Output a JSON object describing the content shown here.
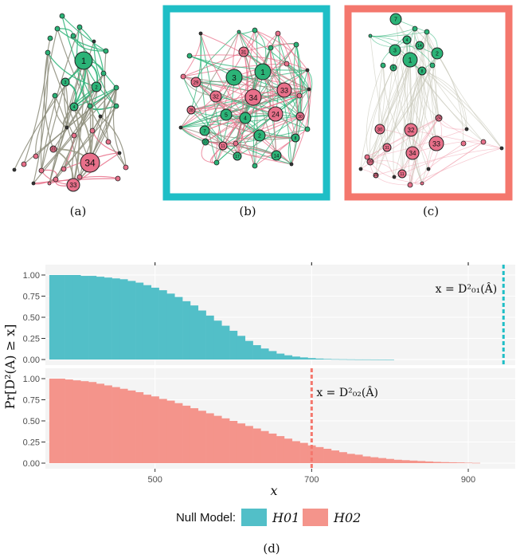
{
  "captions": {
    "a": "(a)",
    "b": "(b)",
    "c": "(c)",
    "d": "(d)"
  },
  "colors": {
    "green": "#2bb377",
    "pink": "#e8708a",
    "teal": "#1fbec6",
    "salmon": "#f4776d",
    "teal_bar": "#52bfc8",
    "salmon_bar": "#f4948b",
    "edge_grey": "#8c8c7a"
  },
  "networks": {
    "a": {
      "node_labels": [
        "1",
        "2",
        "3",
        "4",
        "34",
        "33",
        "31"
      ]
    },
    "b": {
      "node_labels": [
        "1",
        "2",
        "3",
        "4",
        "5",
        "7",
        "14",
        "24",
        "32",
        "33",
        "34",
        "31",
        "30",
        "29",
        "28",
        "8",
        "11",
        "17",
        "22"
      ]
    },
    "c": {
      "node_labels": [
        "1",
        "2",
        "3",
        "4",
        "7",
        "8",
        "14",
        "34",
        "33",
        "32",
        "30",
        "31",
        "29",
        "24",
        "28",
        "11",
        "5"
      ]
    }
  },
  "chart_data": {
    "type": "bar",
    "xlabel": "x",
    "ylabel": "Pr[D²(A) ≥ x]",
    "xlim": [
      360,
      960
    ],
    "x_ticks": [
      "500",
      "700",
      "900"
    ],
    "ylim": [
      0,
      1.0
    ],
    "y_ticks": [
      "0.00",
      "0.25",
      "0.50",
      "0.75",
      "1.00"
    ],
    "grid": true,
    "legend": {
      "title": "Null Model:",
      "position": "bottom",
      "entries": [
        "H01",
        "H02"
      ]
    },
    "series": [
      {
        "name": "H01",
        "x": [
          370,
          380,
          390,
          400,
          410,
          420,
          430,
          440,
          450,
          460,
          470,
          480,
          490,
          500,
          510,
          520,
          530,
          540,
          550,
          560,
          570,
          580,
          590,
          600,
          610,
          620,
          630,
          640,
          650,
          660,
          670,
          680,
          690,
          700,
          710,
          720,
          730,
          740,
          750,
          760,
          770,
          780,
          790,
          800
        ],
        "y": [
          1.0,
          1.0,
          1.0,
          1.0,
          0.99,
          0.99,
          0.98,
          0.97,
          0.96,
          0.95,
          0.93,
          0.91,
          0.88,
          0.85,
          0.82,
          0.78,
          0.74,
          0.69,
          0.64,
          0.58,
          0.52,
          0.46,
          0.4,
          0.34,
          0.28,
          0.22,
          0.17,
          0.13,
          0.1,
          0.07,
          0.05,
          0.035,
          0.025,
          0.017,
          0.011,
          0.007,
          0.004,
          0.003,
          0.002,
          0.001,
          0.001,
          0.0005,
          0.0003,
          0.0001
        ],
        "observed": {
          "x": 945,
          "label": "x = D²₀₁(Â)"
        }
      },
      {
        "name": "H02",
        "x": [
          370,
          380,
          390,
          400,
          410,
          420,
          430,
          440,
          450,
          460,
          470,
          480,
          490,
          500,
          510,
          520,
          530,
          540,
          550,
          560,
          570,
          580,
          590,
          600,
          610,
          620,
          630,
          640,
          650,
          660,
          670,
          680,
          690,
          700,
          710,
          720,
          730,
          740,
          750,
          760,
          770,
          780,
          790,
          800,
          810,
          820,
          830,
          840,
          850,
          860,
          870,
          880,
          890,
          900,
          910
        ],
        "y": [
          1.0,
          1.0,
          0.99,
          0.98,
          0.97,
          0.96,
          0.94,
          0.92,
          0.9,
          0.88,
          0.86,
          0.84,
          0.81,
          0.79,
          0.76,
          0.74,
          0.71,
          0.68,
          0.65,
          0.62,
          0.59,
          0.56,
          0.53,
          0.5,
          0.47,
          0.44,
          0.41,
          0.38,
          0.35,
          0.32,
          0.29,
          0.26,
          0.24,
          0.21,
          0.19,
          0.17,
          0.15,
          0.13,
          0.11,
          0.1,
          0.08,
          0.07,
          0.06,
          0.05,
          0.04,
          0.035,
          0.03,
          0.025,
          0.02,
          0.015,
          0.012,
          0.01,
          0.008,
          0.005,
          0.003
        ],
        "observed": {
          "x": 700,
          "label": "x = D²₀₂(Â)"
        }
      }
    ]
  }
}
